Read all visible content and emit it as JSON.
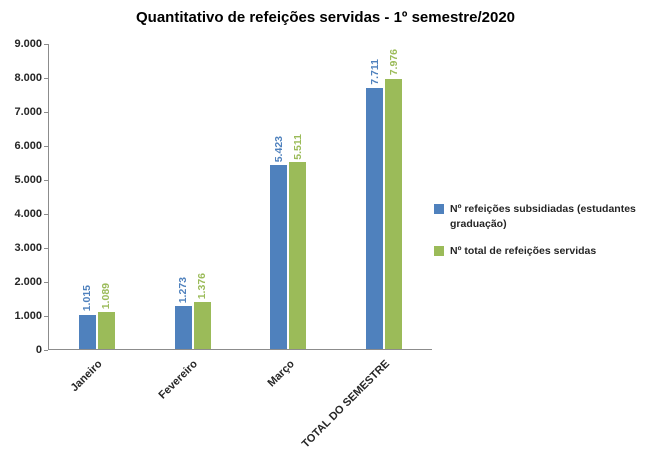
{
  "chart_data": {
    "type": "bar",
    "title": "Quantitativo de refeições servidas - 1º semestre/2020",
    "categories": [
      "Janeiro",
      "Fevereiro",
      "Março",
      "TOTAL DO SEMESTRE"
    ],
    "series": [
      {
        "name": "Nº refeições subsidiadas (estudantes graduação)",
        "color": "#4F81BD",
        "values": [
          1015,
          1273,
          5423,
          7711
        ],
        "value_labels": [
          "1.015",
          "1.273",
          "5.423",
          "7.711"
        ]
      },
      {
        "name": "Nº total de refeições servidas",
        "color": "#9BBB59",
        "values": [
          1089,
          1376,
          5511,
          7976
        ],
        "value_labels": [
          "1.089",
          "1.376",
          "5.511",
          "7.976"
        ]
      }
    ],
    "y_axis": {
      "min": 0,
      "max": 9000,
      "step": 1000,
      "tick_labels": [
        "0",
        "1.000",
        "2.000",
        "3.000",
        "4.000",
        "5.000",
        "6.000",
        "7.000",
        "8.000",
        "9.000"
      ]
    },
    "legend_position": "right",
    "grid": false,
    "background": "#FFFFFF"
  }
}
